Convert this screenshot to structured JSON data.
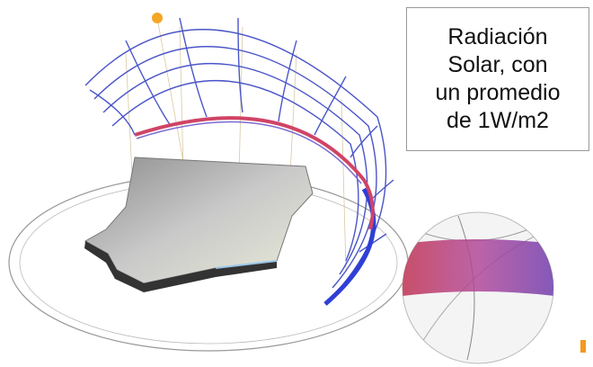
{
  "caption": {
    "lines": [
      "Radiación",
      "Solar, con",
      "un promedio",
      "de 1W/m2"
    ]
  }
}
